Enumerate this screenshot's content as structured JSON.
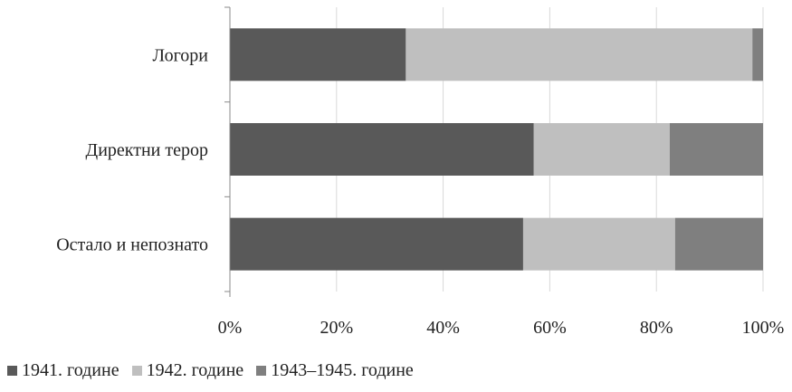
{
  "chart_data": {
    "type": "bar",
    "orientation": "horizontal",
    "stacked": true,
    "percent_stacked": true,
    "categories": [
      "Логори",
      "Директни терор",
      "Остало и непознато"
    ],
    "series": [
      {
        "name": "1941. године",
        "color": "#595959",
        "values": [
          33,
          57,
          55
        ]
      },
      {
        "name": "1942. године",
        "color": "#bfbfbf",
        "values": [
          65,
          25.5,
          28.5
        ]
      },
      {
        "name": "1943–1945. године",
        "color": "#7f7f7f",
        "values": [
          2,
          17.5,
          16.5
        ]
      }
    ],
    "xticks": [
      "0%",
      "20%",
      "40%",
      "60%",
      "80%",
      "100%"
    ],
    "xlim": [
      0,
      100
    ],
    "grid": true,
    "legend_position": "bottom"
  }
}
